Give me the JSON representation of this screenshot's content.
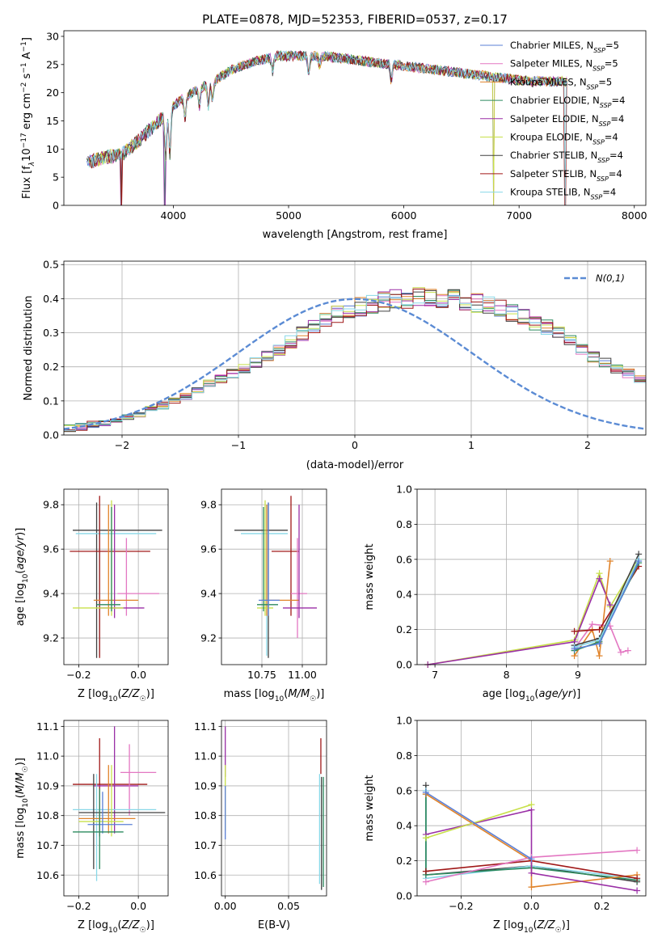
{
  "figure": {
    "title": "PLATE=0878, MJD=52353, FIBERID=0537, z=0.17"
  },
  "chart_data": [
    {
      "type": "line",
      "id": "spectrum",
      "xlabel": "wavelength [Angstrom, rest frame]",
      "ylabel": "Flux [f_λ 10^-17 erg cm^-2 s^-1 A^-1]",
      "xlim": [
        3050,
        8100
      ],
      "ylim": [
        0,
        31
      ],
      "xticks": [
        4000,
        5000,
        6000,
        7000,
        8000
      ],
      "yticks": [
        0,
        5,
        10,
        15,
        20,
        25,
        30
      ],
      "grid": false,
      "legend_position": "top-right",
      "continuum": {
        "x": [
          3250,
          3400,
          3550,
          3700,
          3850,
          3950,
          4050,
          4200,
          4350,
          4500,
          4700,
          4900,
          5100,
          5300,
          5500,
          5700,
          5900,
          6100,
          6300,
          6500,
          6700,
          6900,
          7100,
          7300,
          7400
        ],
        "y": [
          7.5,
          8.5,
          9.0,
          11.5,
          14.5,
          16.5,
          18.5,
          20.5,
          22.0,
          24.0,
          25.5,
          26.5,
          26.5,
          26.5,
          26.0,
          25.5,
          25.0,
          24.5,
          24.0,
          23.5,
          23.0,
          22.5,
          22.0,
          22.0,
          22.0
        ]
      },
      "series": [
        {
          "name": "Chabrier MILES, N_SSP=5",
          "color": "#5a7fd6"
        },
        {
          "name": "Salpeter MILES, N_SSP=5",
          "color": "#e377c2"
        },
        {
          "name": "Kroupa MILES, N_SSP=5",
          "color": "#e0832a"
        },
        {
          "name": "Chabrier ELODIE, N_SSP=4",
          "color": "#2c8a5f"
        },
        {
          "name": "Salpeter ELODIE, N_SSP=4",
          "color": "#9a2fa6"
        },
        {
          "name": "Kroupa ELODIE, N_SSP=4",
          "color": "#c8e04a"
        },
        {
          "name": "Chabrier STELIB, N_SSP=4",
          "color": "#404040"
        },
        {
          "name": "Salpeter STELIB, N_SSP=4",
          "color": "#a01818"
        },
        {
          "name": "Kroupa STELIB, N_SSP=4",
          "color": "#88d8e8"
        }
      ]
    },
    {
      "type": "line",
      "id": "residuals",
      "xlabel": "(data-model)/error",
      "ylabel": "Normed distribution",
      "xlim": [
        -2.5,
        2.5
      ],
      "ylim": [
        0,
        0.51
      ],
      "xticks": [
        -2,
        -1,
        0,
        1,
        2
      ],
      "yticks": [
        0.0,
        0.1,
        0.2,
        0.3,
        0.4,
        0.5
      ],
      "grid": true,
      "legend_position": "top-right",
      "normal_curve": {
        "name": "N(0,1)",
        "color": "#5b8bd4"
      },
      "bin_width": 0.1,
      "bin_start": -2.5,
      "base_hist": [
        0.02,
        0.024,
        0.03,
        0.035,
        0.044,
        0.053,
        0.062,
        0.075,
        0.086,
        0.1,
        0.114,
        0.13,
        0.15,
        0.165,
        0.182,
        0.195,
        0.213,
        0.232,
        0.25,
        0.272,
        0.296,
        0.316,
        0.336,
        0.352,
        0.362,
        0.376,
        0.385,
        0.392,
        0.398,
        0.402,
        0.405,
        0.405,
        0.404,
        0.4,
        0.395,
        0.389,
        0.38,
        0.37,
        0.36,
        0.345,
        0.33,
        0.315,
        0.296,
        0.275,
        0.252,
        0.23,
        0.212,
        0.195,
        0.18,
        0.162
      ],
      "series_colors": [
        "#5a7fd6",
        "#e377c2",
        "#e0832a",
        "#2c8a5f",
        "#9a2fa6",
        "#c8e04a",
        "#404040",
        "#a01818",
        "#88d8e8"
      ]
    },
    {
      "type": "scatter",
      "id": "age-vs-Z",
      "xlabel": "Z [log10(Z/Z☉)]",
      "ylabel": "age  [log10(age/yr)]",
      "xlim": [
        -0.25,
        0.1
      ],
      "ylim": [
        9.08,
        9.87
      ],
      "xticks": [
        "-0.2",
        "0.0"
      ],
      "xtick_values": [
        -0.2,
        0.0
      ],
      "yticks": [
        9.2,
        9.4,
        9.6,
        9.8
      ],
      "grid": true,
      "points": [
        {
          "color": "#404040",
          "x": -0.14,
          "xlo": -0.22,
          "xhi": 0.08,
          "y": 9.685,
          "ylo": 9.11,
          "yhi": 9.81
        },
        {
          "color": "#88d8e8",
          "x": -0.13,
          "xlo": -0.21,
          "xhi": 0.06,
          "y": 9.67,
          "ylo": 9.12,
          "yhi": 9.8
        },
        {
          "color": "#a01818",
          "x": -0.13,
          "xlo": -0.23,
          "xhi": 0.04,
          "y": 9.59,
          "ylo": 9.11,
          "yhi": 9.84
        },
        {
          "color": "#e377c2",
          "x": -0.04,
          "xlo": -0.07,
          "xhi": 0.07,
          "y": 9.4,
          "ylo": 9.3,
          "yhi": 9.65
        },
        {
          "color": "#e0832a",
          "x": -0.1,
          "xlo": -0.15,
          "xhi": 0.0,
          "y": 9.37,
          "ylo": 9.3,
          "yhi": 9.8
        },
        {
          "color": "#9a2fa6",
          "x": -0.08,
          "xlo": -0.13,
          "xhi": 0.02,
          "y": 9.335,
          "ylo": 9.29,
          "yhi": 9.8
        },
        {
          "color": "#c8e04a",
          "x": -0.09,
          "xlo": -0.22,
          "xhi": -0.05,
          "y": 9.335,
          "ylo": 9.3,
          "yhi": 9.82
        },
        {
          "color": "#2c8a5f",
          "x": -0.09,
          "xlo": -0.14,
          "xhi": -0.06,
          "y": 9.35,
          "ylo": 9.32,
          "yhi": 9.79
        }
      ]
    },
    {
      "type": "scatter",
      "id": "age-vs-mass",
      "xlabel": "mass [log10(M/M☉)]",
      "ylabel": "",
      "xlim": [
        10.5,
        11.15
      ],
      "ylim": [
        9.08,
        9.87
      ],
      "xticks": [
        "10.75",
        "11.00"
      ],
      "xtick_values": [
        10.75,
        11.0
      ],
      "yticks": [
        9.2,
        9.4,
        9.6,
        9.8
      ],
      "grid": true,
      "points": [
        {
          "color": "#404040",
          "x": 10.79,
          "xlo": 10.58,
          "xhi": 10.91,
          "y": 9.685,
          "ylo": 9.11,
          "yhi": 9.81
        },
        {
          "color": "#88d8e8",
          "x": 10.78,
          "xlo": 10.62,
          "xhi": 10.91,
          "y": 9.67,
          "ylo": 9.12,
          "yhi": 9.8
        },
        {
          "color": "#a01818",
          "x": 10.93,
          "xlo": 10.81,
          "xhi": 10.98,
          "y": 9.59,
          "ylo": 9.3,
          "yhi": 9.84
        },
        {
          "color": "#e377c2",
          "x": 10.97,
          "xlo": 10.93,
          "xhi": 11.03,
          "y": 9.4,
          "ylo": 9.2,
          "yhi": 9.65
        },
        {
          "color": "#e0832a",
          "x": 10.78,
          "xlo": 10.75,
          "xhi": 10.98,
          "y": 9.37,
          "ylo": 9.3,
          "yhi": 9.8
        },
        {
          "color": "#9a2fa6",
          "x": 10.98,
          "xlo": 10.88,
          "xhi": 11.09,
          "y": 9.335,
          "ylo": 9.29,
          "yhi": 9.8
        },
        {
          "color": "#c8e04a",
          "x": 10.77,
          "xlo": 10.72,
          "xhi": 10.82,
          "y": 9.335,
          "ylo": 9.3,
          "yhi": 9.82
        },
        {
          "color": "#2c8a5f",
          "x": 10.76,
          "xlo": 10.72,
          "xhi": 10.85,
          "y": 9.35,
          "ylo": 9.32,
          "yhi": 9.79
        },
        {
          "color": "#5a7fd6",
          "x": 10.79,
          "xlo": 10.73,
          "xhi": 10.86,
          "y": 9.37,
          "ylo": 9.3,
          "yhi": 9.81
        }
      ]
    },
    {
      "type": "line",
      "id": "mass-weight-vs-age",
      "xlabel": "age  [log10(age/yr)]",
      "ylabel": "mass weight",
      "xlim": [
        6.75,
        9.95
      ],
      "ylim": [
        0,
        1.0
      ],
      "xticks": [
        7,
        8,
        9
      ],
      "yticks": [
        0.0,
        0.2,
        0.4,
        0.6,
        0.8,
        1.0
      ],
      "grid": true,
      "series": [
        {
          "color": "#c8e04a",
          "x": [
            6.9,
            8.95,
            9.3,
            9.45,
            9.85
          ],
          "y": [
            0.0,
            0.14,
            0.52,
            0.33,
            0.6
          ]
        },
        {
          "color": "#9a2fa6",
          "x": [
            6.9,
            8.95,
            9.3,
            9.45
          ],
          "y": [
            0.0,
            0.13,
            0.49,
            0.34
          ]
        },
        {
          "color": "#e0832a",
          "x": [
            8.95,
            9.2,
            9.3,
            9.45
          ],
          "y": [
            0.05,
            0.2,
            0.05,
            0.59
          ]
        },
        {
          "color": "#e377c2",
          "x": [
            8.95,
            9.2,
            9.45,
            9.6,
            9.7
          ],
          "y": [
            0.09,
            0.23,
            0.22,
            0.07,
            0.08
          ]
        },
        {
          "color": "#a01818",
          "x": [
            8.95,
            9.3,
            9.85
          ],
          "y": [
            0.19,
            0.2,
            0.56
          ]
        },
        {
          "color": "#404040",
          "x": [
            8.95,
            9.3,
            9.85
          ],
          "y": [
            0.11,
            0.15,
            0.63
          ]
        },
        {
          "color": "#2c8a5f",
          "x": [
            8.95,
            9.3,
            9.85
          ],
          "y": [
            0.08,
            0.13,
            0.58
          ]
        },
        {
          "color": "#88d8e8",
          "x": [
            8.95,
            9.3,
            9.85
          ],
          "y": [
            0.1,
            0.14,
            0.6
          ]
        },
        {
          "color": "#5a7fd6",
          "x": [
            8.95,
            9.3,
            9.85
          ],
          "y": [
            0.09,
            0.12,
            0.59
          ]
        }
      ]
    },
    {
      "type": "scatter",
      "id": "mass-vs-Z",
      "xlabel": "Z [log10(Z/Z☉)]",
      "ylabel": "mass [log10(M/M☉)]",
      "xlim": [
        -0.25,
        0.1
      ],
      "ylim": [
        10.53,
        11.12
      ],
      "xticks": [
        "-0.2",
        "0.0"
      ],
      "xtick_values": [
        -0.2,
        0.0
      ],
      "yticks": [
        10.6,
        10.7,
        10.8,
        10.9,
        11.0,
        11.1
      ],
      "grid": true,
      "points": [
        {
          "color": "#a01818",
          "x": -0.13,
          "xlo": -0.22,
          "xhi": 0.03,
          "y": 10.905,
          "ylo": 10.73,
          "yhi": 11.06
        },
        {
          "color": "#9a2fa6",
          "x": -0.08,
          "xlo": -0.15,
          "xhi": 0.0,
          "y": 10.9,
          "ylo": 10.74,
          "yhi": 11.1
        },
        {
          "color": "#e377c2",
          "x": -0.03,
          "xlo": -0.06,
          "xhi": 0.06,
          "y": 10.945,
          "ylo": 10.8,
          "yhi": 11.04
        },
        {
          "color": "#88d8e8",
          "x": -0.14,
          "xlo": -0.22,
          "xhi": 0.06,
          "y": 10.82,
          "ylo": 10.58,
          "yhi": 10.94
        },
        {
          "color": "#404040",
          "x": -0.15,
          "xlo": -0.2,
          "xhi": 0.09,
          "y": 10.81,
          "ylo": 10.62,
          "yhi": 10.94
        },
        {
          "color": "#e0832a",
          "x": -0.1,
          "xlo": -0.2,
          "xhi": -0.01,
          "y": 10.79,
          "ylo": 10.74,
          "yhi": 10.97
        },
        {
          "color": "#c8e04a",
          "x": -0.09,
          "xlo": -0.2,
          "xhi": -0.05,
          "y": 10.78,
          "ylo": 10.73,
          "yhi": 10.97
        },
        {
          "color": "#5a7fd6",
          "x": -0.12,
          "xlo": -0.17,
          "xhi": -0.02,
          "y": 10.77,
          "ylo": 10.74,
          "yhi": 10.88
        },
        {
          "color": "#2c8a5f",
          "x": -0.13,
          "xlo": -0.22,
          "xhi": -0.05,
          "y": 10.745,
          "ylo": 10.62,
          "yhi": 10.89
        }
      ]
    },
    {
      "type": "scatter",
      "id": "mass-vs-EBV",
      "xlabel": "E(B-V)",
      "ylabel": "",
      "xlim": [
        -0.003,
        0.08
      ],
      "ylim": [
        10.53,
        11.12
      ],
      "xticks": [
        "0.00",
        "0.05"
      ],
      "xtick_values": [
        0.0,
        0.05
      ],
      "yticks": [
        10.6,
        10.7,
        10.8,
        10.9,
        11.0,
        11.1
      ],
      "grid": true,
      "points": [
        {
          "color": "#9a2fa6",
          "x": 0.0,
          "ylo": 10.93,
          "yhi": 11.1
        },
        {
          "color": "#c8e04a",
          "x": 0.0,
          "ylo": 10.75,
          "yhi": 10.97
        },
        {
          "color": "#5a7fd6",
          "x": 0.0,
          "ylo": 10.72,
          "yhi": 10.9
        },
        {
          "color": "#a01818",
          "x": 0.0755,
          "ylo": 10.94,
          "yhi": 11.06
        },
        {
          "color": "#88d8e8",
          "x": 0.0745,
          "ylo": 10.57,
          "yhi": 10.94
        },
        {
          "color": "#404040",
          "x": 0.076,
          "ylo": 10.55,
          "yhi": 10.93
        },
        {
          "color": "#2c8a5f",
          "x": 0.0775,
          "ylo": 10.56,
          "yhi": 10.93
        }
      ]
    },
    {
      "type": "line",
      "id": "mass-weight-vs-Z",
      "xlabel": "Z [log10(Z/Z☉)]",
      "ylabel": "mass weight",
      "xlim": [
        -0.325,
        0.325
      ],
      "ylim": [
        0,
        1.0
      ],
      "xticks": [
        "-0.2",
        "0.0",
        "0.2"
      ],
      "xtick_values": [
        -0.2,
        0.0,
        0.2
      ],
      "yticks": [
        0.0,
        0.2,
        0.4,
        0.6,
        0.8,
        1.0
      ],
      "grid": true,
      "series": [
        {
          "color": "#404040",
          "x": [
            -0.3,
            -0.3,
            0.0,
            0.3
          ],
          "y": [
            0.63,
            0.12,
            0.17,
            0.08
          ]
        },
        {
          "color": "#88d8e8",
          "x": [
            -0.3,
            -0.3,
            0.0,
            0.3
          ],
          "y": [
            0.6,
            0.1,
            0.17,
            0.1
          ]
        },
        {
          "color": "#2c8a5f",
          "x": [
            -0.3,
            -0.3,
            0.0,
            0.3
          ],
          "y": [
            0.58,
            0.12,
            0.16,
            0.09
          ]
        },
        {
          "color": "#e0832a",
          "x": [
            -0.3,
            0.0,
            0.0,
            0.3
          ],
          "y": [
            0.58,
            0.2,
            0.05,
            0.12
          ]
        },
        {
          "color": "#a01818",
          "x": [
            -0.3,
            0.0,
            0.3
          ],
          "y": [
            0.14,
            0.2,
            0.1
          ]
        },
        {
          "color": "#9a2fa6",
          "x": [
            -0.3,
            0.0,
            0.0,
            0.3
          ],
          "y": [
            0.35,
            0.49,
            0.13,
            0.03
          ]
        },
        {
          "color": "#c8e04a",
          "x": [
            -0.3,
            0.0
          ],
          "y": [
            0.33,
            0.52
          ]
        },
        {
          "color": "#e377c2",
          "x": [
            -0.3,
            0.0,
            0.3
          ],
          "y": [
            0.08,
            0.22,
            0.26
          ]
        },
        {
          "color": "#5a7fd6",
          "x": [
            -0.3,
            0.0
          ],
          "y": [
            0.59,
            0.21
          ]
        }
      ]
    }
  ]
}
